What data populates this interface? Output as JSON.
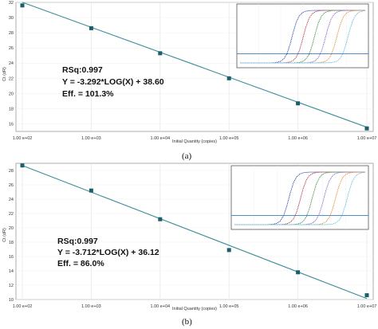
{
  "caption_a": "(a)",
  "caption_b": "(b)",
  "chart_data": [
    {
      "type": "scatter",
      "xscale": "log",
      "xlabel": "Initial Quantity (copies)",
      "ylabel": "Ct (dR)",
      "xlim": [
        100,
        10000000
      ],
      "ylim": [
        15,
        32
      ],
      "xticks": [
        {
          "v": 100,
          "label": "1.00 e+02"
        },
        {
          "v": 1000,
          "label": "1.00 e+03"
        },
        {
          "v": 10000,
          "label": "1.00 e+04"
        },
        {
          "v": 100000,
          "label": "1.00 e+05"
        },
        {
          "v": 1000000,
          "label": "1.00 e+06"
        },
        {
          "v": 10000000,
          "label": "1.00 e+07"
        }
      ],
      "yticks": [
        16,
        18,
        20,
        22,
        24,
        26,
        28,
        30,
        32
      ],
      "points": [
        {
          "x": 100,
          "y": 31.6
        },
        {
          "x": 1000,
          "y": 28.6
        },
        {
          "x": 10000,
          "y": 25.3
        },
        {
          "x": 100000,
          "y": 22.0
        },
        {
          "x": 1000000,
          "y": 18.7
        },
        {
          "x": 10000000,
          "y": 15.4
        }
      ],
      "fit": {
        "slope": -3.292,
        "intercept": 38.6
      },
      "annotations": [
        "RSq:0.997",
        "Y = -3.292*LOG(X) + 38.60",
        "Eff. = 101.3%"
      ],
      "colors": {
        "line": "#3a8f98",
        "marker": "#1d5e6b"
      }
    },
    {
      "type": "scatter",
      "xscale": "log",
      "xlabel": "Initial Quantity (copies)",
      "ylabel": "Ct (dR)",
      "xlim": [
        100,
        10000000
      ],
      "ylim": [
        10,
        29
      ],
      "xticks": [
        {
          "v": 100,
          "label": "1.00 e+02"
        },
        {
          "v": 1000,
          "label": "1.00 e+03"
        },
        {
          "v": 10000,
          "label": "1.00 e+04"
        },
        {
          "v": 100000,
          "label": "1.00 e+05"
        },
        {
          "v": 1000000,
          "label": "1.00 e+06"
        },
        {
          "v": 10000000,
          "label": "1.00 e+07"
        }
      ],
      "yticks": [
        10,
        12,
        14,
        16,
        18,
        20,
        22,
        24,
        26,
        28
      ],
      "points": [
        {
          "x": 100,
          "y": 28.7
        },
        {
          "x": 1000,
          "y": 25.2
        },
        {
          "x": 10000,
          "y": 21.2
        },
        {
          "x": 100000,
          "y": 16.9
        },
        {
          "x": 1000000,
          "y": 13.8
        },
        {
          "x": 10000000,
          "y": 10.6
        }
      ],
      "fit": {
        "slope": -3.712,
        "intercept": 36.12
      },
      "annotations": [
        "RSq:0.997",
        "Y = -3.712*LOG(X) + 36.12",
        "Eff. = 86.0%"
      ],
      "colors": {
        "line": "#3a8f98",
        "marker": "#1d5e6b"
      }
    }
  ],
  "insets": [
    {
      "curve_colors": [
        "#1f3fa0",
        "#b3243a",
        "#2e8b3a",
        "#8a5fc4",
        "#e08a2a",
        "#59b7e0"
      ],
      "threshold_color": "#3a7fc1"
    },
    {
      "curve_colors": [
        "#1f3fa0",
        "#b3243a",
        "#2e8b3a",
        "#8a5fc4",
        "#e08a2a",
        "#59b7e0"
      ],
      "threshold_color": "#3a7fc1"
    }
  ]
}
